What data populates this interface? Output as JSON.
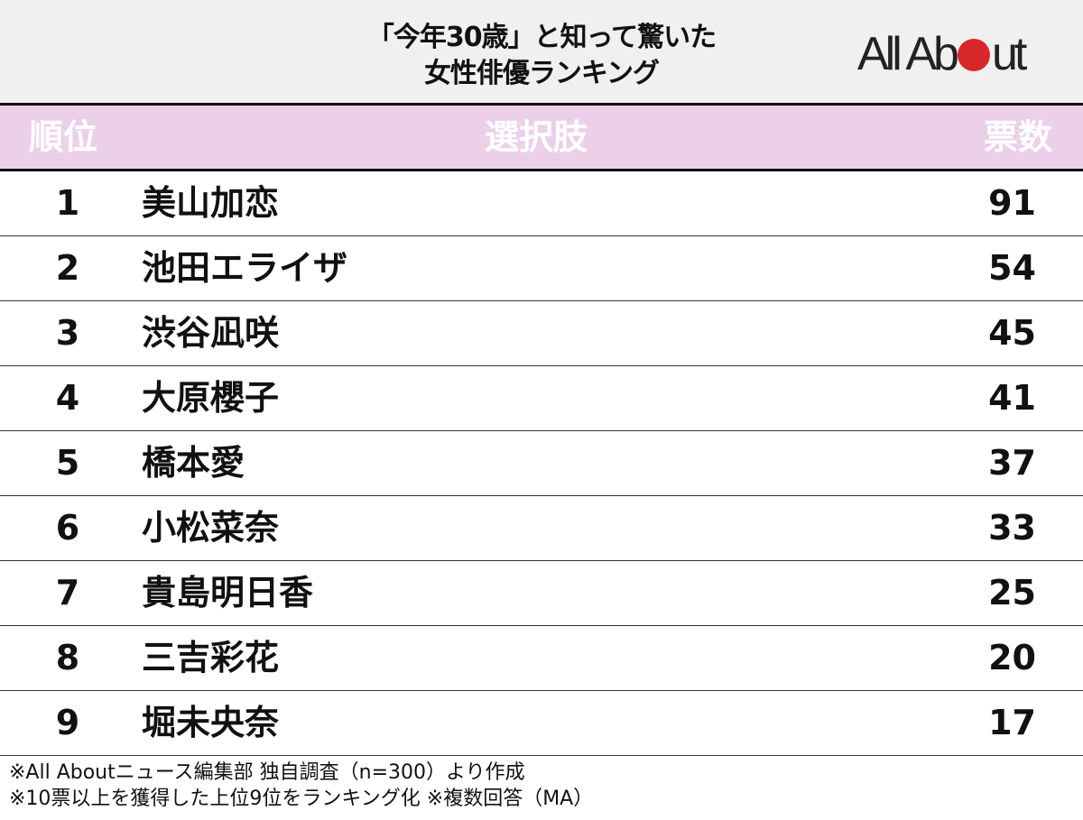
{
  "title": {
    "line1": "「今年30歳」と知って驚いた",
    "line2": "女性俳優ランキング"
  },
  "logo": {
    "text_before": "All Ab",
    "text_after": "ut",
    "full": "All About",
    "accent": "#d7282a"
  },
  "header": {
    "rank": "順位",
    "choice": "選択肢",
    "votes": "票数",
    "bg": "#ecd0ea"
  },
  "chart_data": {
    "type": "table",
    "columns": [
      "順位",
      "選択肢",
      "票数"
    ],
    "rows": [
      {
        "rank": "1",
        "name": "美山加恋",
        "votes": "91"
      },
      {
        "rank": "2",
        "name": "池田エライザ",
        "votes": "54"
      },
      {
        "rank": "3",
        "name": "渋谷凪咲",
        "votes": "45"
      },
      {
        "rank": "4",
        "name": "大原櫻子",
        "votes": "41"
      },
      {
        "rank": "5",
        "name": "橋本愛",
        "votes": "37"
      },
      {
        "rank": "6",
        "name": "小松菜奈",
        "votes": "33"
      },
      {
        "rank": "7",
        "name": "貴島明日香",
        "votes": "25"
      },
      {
        "rank": "8",
        "name": "三吉彩花",
        "votes": "20"
      },
      {
        "rank": "9",
        "name": "堀未央奈",
        "votes": "17"
      }
    ]
  },
  "footer": {
    "line1": "※All Aboutニュース編集部 独自調査（n=300）より作成",
    "line2": "※10票以上を獲得した上位9位をランキング化 ※複数回答（MA）"
  }
}
